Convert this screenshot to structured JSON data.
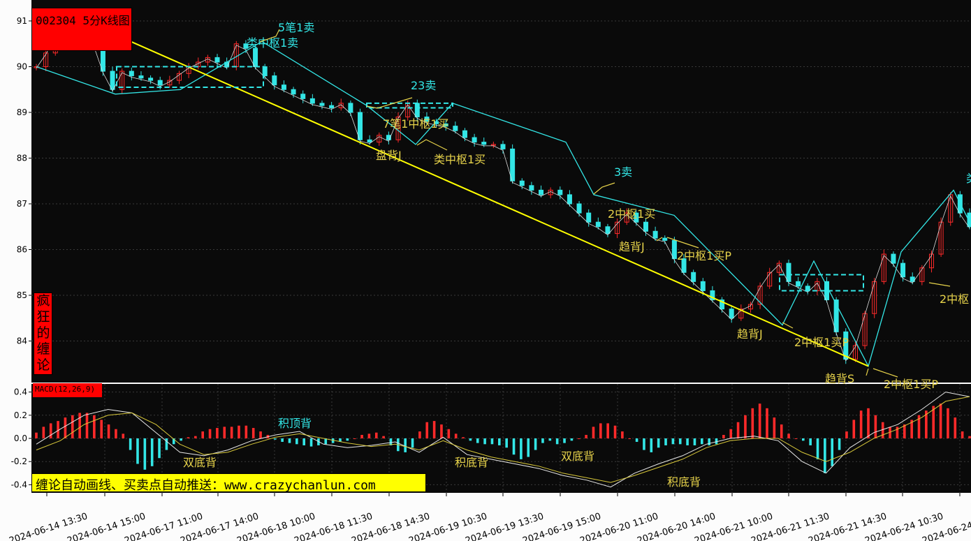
{
  "chart_title": "002304 5分K线图",
  "side_label": "疯狂的缠论",
  "indicator_label": "MACD(12,26,9)",
  "ad_text": "缠论自动画线、买卖点自动推送：www.crazychanlun.com",
  "colors": {
    "background": "#0a0a0a",
    "up": "#ff2a2a",
    "down": "#33e6e6",
    "trendline": "#ffff00",
    "stroke": "#33e6e6",
    "annotation_cyan": "#33e6e6",
    "annotation_yellow": "#e6d24a",
    "label_box": "#ff0000",
    "ad_box": "#ffff00"
  },
  "chart_data": [
    {
      "type": "candlestick",
      "title": "002304 5分K线图",
      "ylim": [
        83.5,
        91.3
      ],
      "yticks": [
        84,
        85,
        86,
        87,
        88,
        89,
        90,
        91
      ],
      "grid": true,
      "x_labels": [
        "2024-06-14 13:30",
        "2024-06-14 15:00",
        "2024-06-17 11:00",
        "2024-06-17 14:00",
        "2024-06-18 10:00",
        "2024-06-18 11:30",
        "2024-06-18 14:30",
        "2024-06-19 10:30",
        "2024-06-19 13:30",
        "2024-06-19 15:00",
        "2024-06-20 11:00",
        "2024-06-20 14:00",
        "2024-06-21 10:00",
        "2024-06-21 11:30",
        "2024-06-21 14:30",
        "2024-06-24 10:30",
        "2024-06-24"
      ],
      "price_path": [
        90.0,
        90.3,
        90.7,
        91.0,
        91.1,
        90.9,
        90.5,
        89.9,
        89.5,
        89.9,
        89.8,
        89.75,
        89.7,
        89.6,
        89.7,
        89.85,
        90.0,
        90.1,
        90.2,
        90.1,
        90.0,
        90.5,
        90.4,
        90.0,
        89.8,
        89.6,
        89.5,
        89.4,
        89.3,
        89.2,
        89.15,
        89.1,
        89.2,
        89.0,
        88.4,
        88.35,
        88.5,
        88.4,
        88.9,
        89.2,
        88.9,
        88.8,
        88.75,
        88.7,
        88.6,
        88.45,
        88.35,
        88.3,
        88.3,
        88.2,
        87.5,
        87.4,
        87.3,
        87.2,
        87.3,
        87.2,
        87.0,
        86.8,
        86.6,
        86.5,
        86.35,
        86.6,
        86.8,
        86.6,
        86.4,
        86.25,
        86.2,
        85.8,
        85.5,
        85.3,
        85.1,
        84.9,
        84.7,
        84.5,
        84.7,
        84.8,
        85.2,
        85.5,
        85.7,
        85.3,
        85.2,
        85.1,
        85.3,
        84.9,
        84.2,
        83.6,
        83.9,
        84.6,
        85.3,
        85.9,
        85.7,
        85.4,
        85.3,
        85.6,
        85.9,
        86.6,
        87.2,
        86.8,
        86.5
      ],
      "strokes": [
        [
          90.55,
          90.5
        ],
        [
          89.4,
          89.5
        ],
        [
          90.4,
          89.35
        ],
        [
          89.1,
          89.25
        ],
        [
          88.3,
          87.35
        ],
        [
          87.4,
          86.3
        ],
        [
          86.75,
          86.4
        ],
        [
          84.4,
          84.35
        ],
        [
          85.75,
          84.9
        ],
        [
          85.3,
          83.45
        ],
        [
          85.95,
          85.2
        ],
        [
          87.3,
          86.3
        ]
      ],
      "pivot_boxes": [
        {
          "top": 90.0,
          "bottom": 89.55
        },
        {
          "top": 89.2,
          "bottom": 89.1
        },
        {
          "top": 85.45,
          "bottom": 85.1
        }
      ],
      "trendline": {
        "start": 90.8,
        "end": 83.45
      },
      "annotations": [
        {
          "text": "5笔1卖",
          "color": "cyan"
        },
        {
          "text": "类中枢1卖",
          "color": "cyan"
        },
        {
          "text": "23卖",
          "color": "cyan"
        },
        {
          "text": "7笔1中枢1买",
          "color": "yellow"
        },
        {
          "text": "盘背J",
          "color": "yellow"
        },
        {
          "text": "类中枢1买",
          "color": "yellow"
        },
        {
          "text": "3卖",
          "color": "cyan"
        },
        {
          "text": "2中枢1买",
          "color": "yellow"
        },
        {
          "text": "趋背J",
          "color": "yellow"
        },
        {
          "text": "2中枢1买P",
          "color": "yellow"
        },
        {
          "text": "趋背J",
          "color": "yellow"
        },
        {
          "text": "2中枢1买P",
          "color": "yellow"
        },
        {
          "text": "趋背S",
          "color": "yellow"
        },
        {
          "text": "2中枢1买P",
          "color": "yellow"
        },
        {
          "text": "2中枢",
          "color": "yellow"
        },
        {
          "text": "类",
          "color": "cyan"
        }
      ]
    },
    {
      "type": "bar",
      "title": "MACD(12,26,9)",
      "ylim": [
        -0.45,
        0.42
      ],
      "yticks": [
        -0.4,
        -0.2,
        0.0,
        0.2,
        0.4
      ],
      "ytick_labels": [
        "-0.4",
        "-0.2",
        "0.0",
        "0.2",
        "0.4"
      ],
      "hist": [
        0.05,
        0.1,
        0.13,
        0.15,
        0.18,
        0.2,
        0.22,
        0.22,
        0.2,
        0.16,
        0.12,
        0.08,
        0.04,
        -0.1,
        -0.22,
        -0.27,
        -0.24,
        -0.17,
        -0.1,
        -0.05,
        -0.02,
        0.01,
        0.02,
        0.06,
        0.08,
        0.09,
        0.1,
        0.1,
        0.11,
        0.11,
        0.09,
        0.06,
        0.03,
        -0.01,
        -0.03,
        -0.04,
        -0.05,
        -0.06,
        -0.07,
        -0.06,
        -0.05,
        -0.04,
        -0.03,
        -0.02,
        0.0,
        0.03,
        0.04,
        0.05,
        0.02,
        -0.06,
        -0.11,
        -0.12,
        -0.08,
        0.06,
        0.14,
        0.15,
        0.12,
        0.08,
        0.04,
        0.01,
        -0.02,
        -0.04,
        -0.05,
        -0.05,
        -0.06,
        -0.08,
        -0.14,
        -0.18,
        -0.16,
        -0.1,
        -0.04,
        -0.02,
        -0.05,
        -0.04,
        -0.02,
        0.0,
        0.03,
        0.1,
        0.13,
        0.13,
        0.11,
        0.06,
        0.0,
        -0.03,
        -0.1,
        -0.12,
        -0.08,
        -0.06,
        -0.05,
        -0.05,
        -0.06,
        -0.06,
        -0.05,
        -0.06,
        -0.05,
        0.03,
        0.08,
        0.14,
        0.2,
        0.26,
        0.3,
        0.26,
        0.18,
        0.12,
        0.04,
        0.0,
        -0.02,
        -0.06,
        -0.18,
        -0.3,
        -0.24,
        -0.1,
        0.06,
        0.16,
        0.24,
        0.26,
        0.2,
        0.14,
        0.1,
        0.1,
        0.12,
        0.16,
        0.2,
        0.24,
        0.28,
        0.3,
        0.26,
        0.18,
        0.06,
        0.02
      ],
      "dif": [
        -0.05,
        0.08,
        0.2,
        0.25,
        0.22,
        0.05,
        -0.12,
        -0.15,
        -0.1,
        -0.02,
        0.03,
        0.06,
        -0.05,
        -0.08,
        -0.06,
        -0.03,
        -0.12,
        0.01,
        -0.14,
        -0.18,
        -0.22,
        -0.26,
        -0.32,
        -0.36,
        -0.42,
        -0.3,
        -0.22,
        -0.15,
        -0.05,
        0.0,
        0.02,
        -0.02,
        -0.2,
        -0.3,
        -0.08,
        0.05,
        0.12,
        0.25,
        0.4,
        0.36
      ],
      "dea": [
        -0.1,
        -0.02,
        0.12,
        0.2,
        0.22,
        0.12,
        -0.05,
        -0.14,
        -0.12,
        -0.05,
        0.01,
        0.04,
        0.0,
        -0.04,
        -0.07,
        -0.05,
        -0.1,
        -0.02,
        -0.1,
        -0.16,
        -0.2,
        -0.24,
        -0.3,
        -0.34,
        -0.38,
        -0.32,
        -0.25,
        -0.18,
        -0.08,
        -0.02,
        0.0,
        0.0,
        -0.12,
        -0.2,
        -0.12,
        0.0,
        0.08,
        0.18,
        0.32,
        0.36
      ],
      "annotations": [
        {
          "text": "积顶背",
          "color": "cyan"
        },
        {
          "text": "双底背",
          "color": "yellow"
        },
        {
          "text": "积底背",
          "color": "yellow"
        },
        {
          "text": "双底背",
          "color": "yellow"
        },
        {
          "text": "积底背",
          "color": "yellow"
        }
      ]
    }
  ]
}
